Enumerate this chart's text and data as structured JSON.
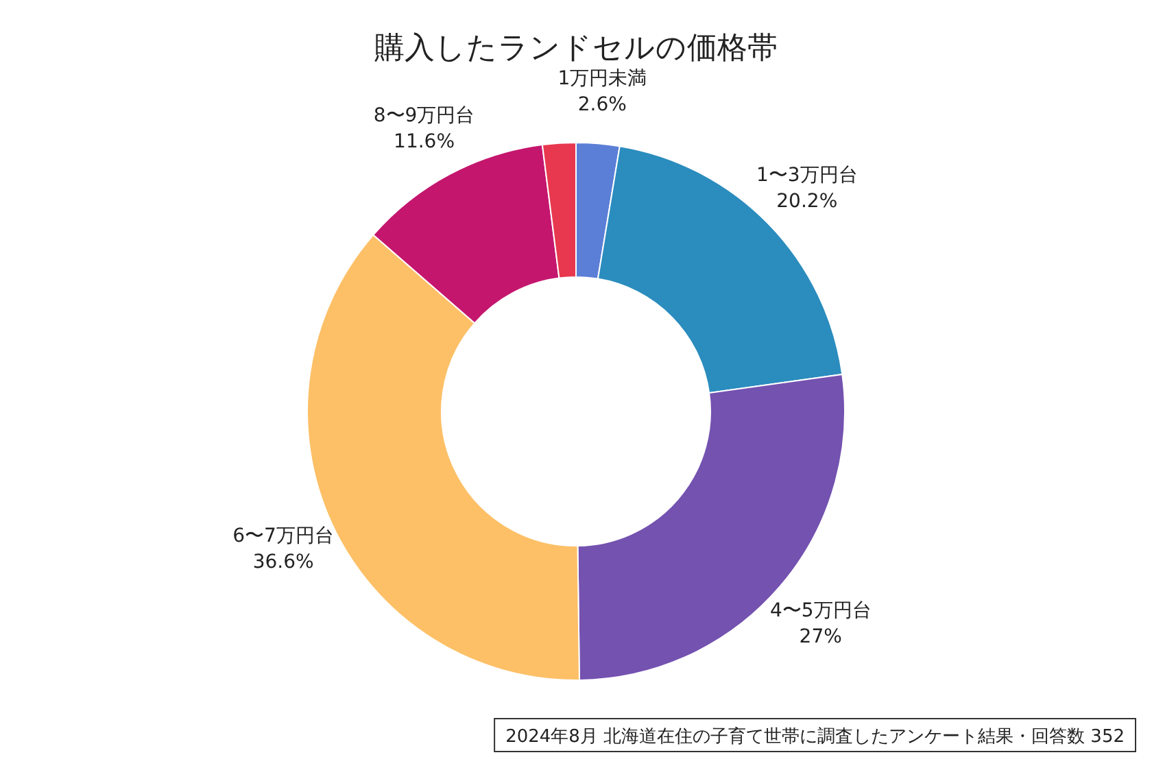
{
  "chart_data": {
    "type": "donut",
    "title": "購入したランドセルの価格帯",
    "categories": [
      "1万円未満",
      "1〜3万円台",
      "4〜5万円台",
      "6〜7万円台",
      "8〜9万円台",
      null
    ],
    "values": [
      2.6,
      20.2,
      27,
      36.6,
      11.6,
      2.0
    ],
    "colors": [
      "#5b7fd6",
      "#2b8cbe",
      "#7452b0",
      "#fdc067",
      "#c5166e",
      "#e8384f"
    ],
    "value_labels": [
      "2.6%",
      "20.2%",
      "27%",
      "36.6%",
      "11.6%",
      null
    ],
    "annotations": [
      "2024年8月  北海道在住の子育て世帯に調査したアンケート結果・回答数  352"
    ]
  }
}
